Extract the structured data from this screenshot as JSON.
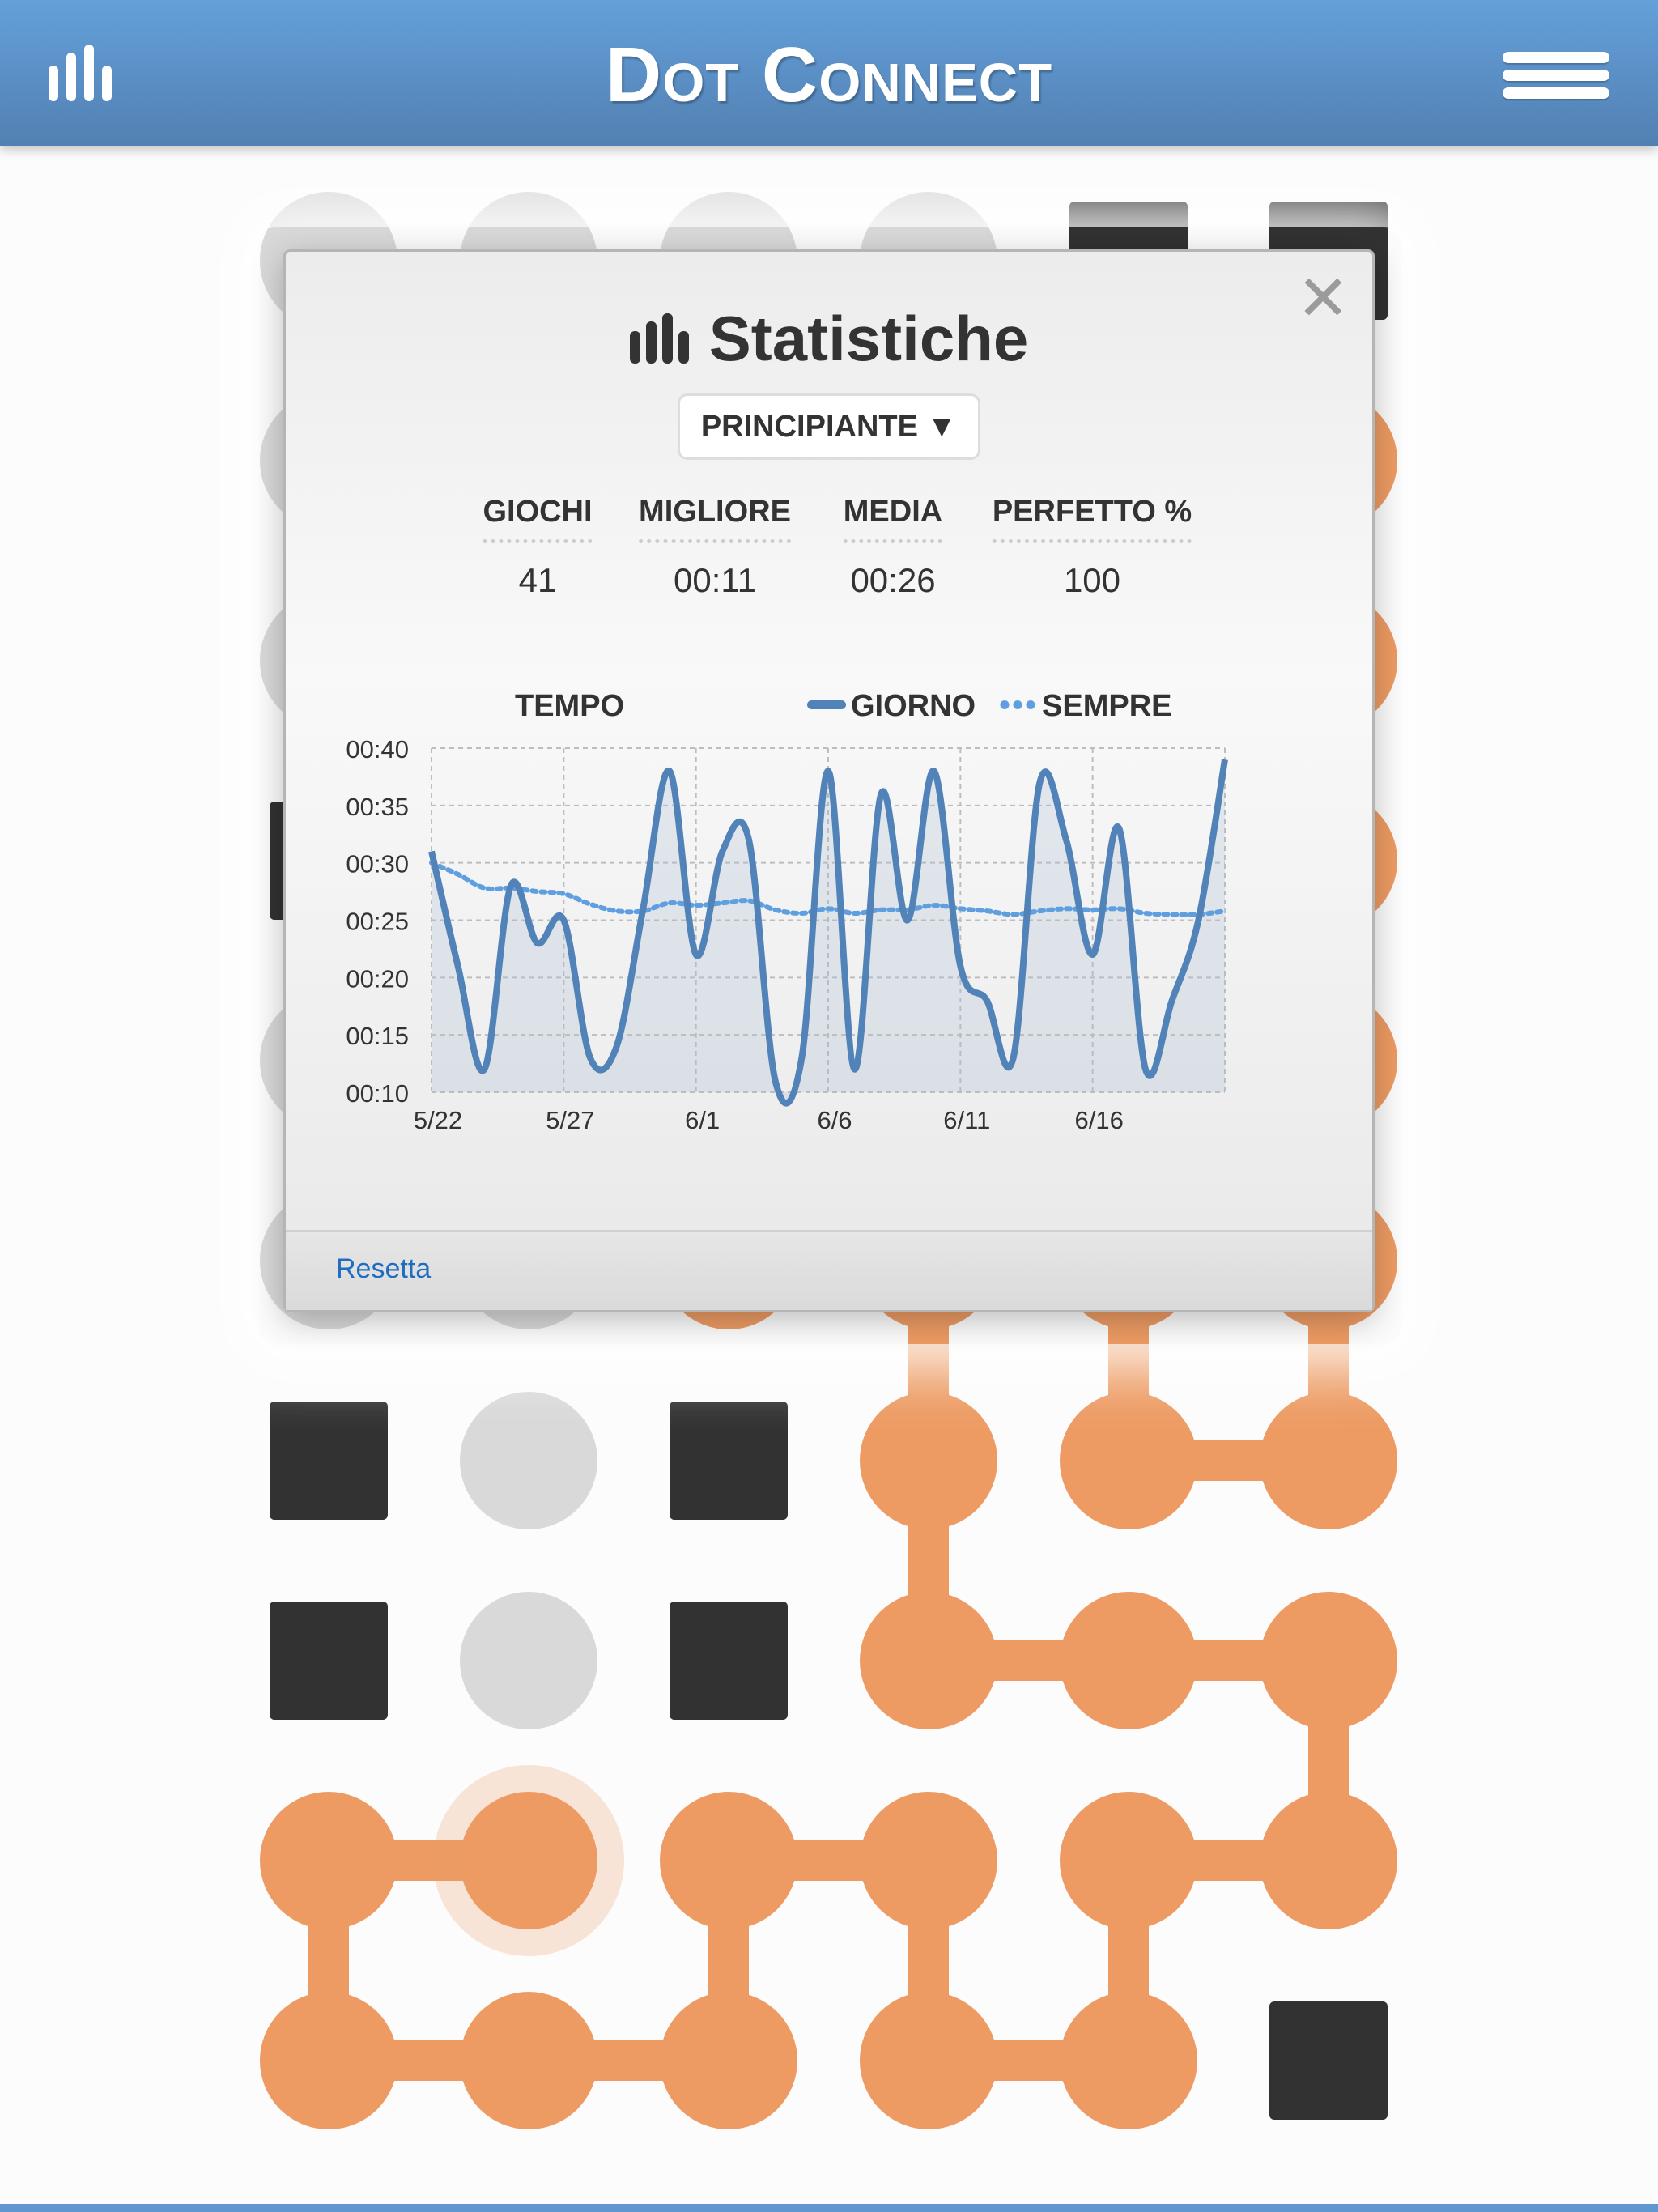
{
  "header": {
    "title": "Dot Connect",
    "left_icon": "stats-bars-icon",
    "right_icon": "hamburger-menu-icon"
  },
  "colors": {
    "header": "#5b8fc7",
    "path": "#ed9b63",
    "empty_dot": "#d9d9d9",
    "block": "#323232",
    "chart_line": "#5182b8",
    "chart_avg": "#5f9fe0",
    "link": "#1f6dc0"
  },
  "board": {
    "rows": [
      "GGGGBB",
      "GGGGGO",
      "GGGGGO",
      "BGGGGO",
      "GGGGGO",
      "GGOOOO",
      "BGBOOO",
      "BGBOOO",
      "OOOOOO",
      "OOOOOB"
    ],
    "highlight": [
      8,
      1
    ],
    "links": [
      [
        5,
        3,
        6,
        3
      ],
      [
        5,
        4,
        6,
        4
      ],
      [
        5,
        5,
        6,
        5
      ],
      [
        6,
        3,
        7,
        3
      ],
      [
        6,
        4,
        6,
        5
      ],
      [
        7,
        3,
        7,
        4
      ],
      [
        7,
        4,
        7,
        5
      ],
      [
        7,
        5,
        8,
        5
      ],
      [
        8,
        0,
        8,
        1
      ],
      [
        8,
        2,
        8,
        3
      ],
      [
        8,
        4,
        8,
        5
      ],
      [
        8,
        0,
        9,
        0
      ],
      [
        8,
        2,
        9,
        2
      ],
      [
        8,
        3,
        9,
        3
      ],
      [
        8,
        4,
        9,
        4
      ],
      [
        9,
        0,
        9,
        1
      ],
      [
        9,
        1,
        9,
        2
      ],
      [
        9,
        3,
        9,
        4
      ]
    ]
  },
  "modal": {
    "title": "Statistiche",
    "title_icon": "stats-bars-icon",
    "close_icon": "close-x-icon",
    "difficulty": "PRINCIPIANTE",
    "stats": [
      {
        "label": "GIOCHI",
        "value": "41"
      },
      {
        "label": "MIGLIORE",
        "value": "00:11"
      },
      {
        "label": "MEDIA",
        "value": "00:26"
      },
      {
        "label": "PERFETTO %",
        "value": "100"
      }
    ],
    "reset_label": "Resetta"
  },
  "chart_data": {
    "type": "line",
    "title": "TEMPO",
    "legend_position": "top-right",
    "grid": true,
    "x": [
      "5/22",
      "5/23",
      "5/24",
      "5/25",
      "5/26",
      "5/27",
      "5/28",
      "5/29",
      "5/30",
      "5/31",
      "6/1",
      "6/2",
      "6/3",
      "6/4",
      "6/5",
      "6/6",
      "6/7",
      "6/8",
      "6/9",
      "6/10",
      "6/11",
      "6/12",
      "6/13",
      "6/14",
      "6/15",
      "6/16",
      "6/17",
      "6/18",
      "6/19",
      "6/20",
      "6/21"
    ],
    "x_tick_labels": [
      "5/22",
      "5/27",
      "6/1",
      "6/6",
      "6/11",
      "6/16"
    ],
    "y_tick_labels": [
      "00:10",
      "00:15",
      "00:20",
      "00:25",
      "00:30",
      "00:35",
      "00:40"
    ],
    "ylim_seconds": [
      10,
      40
    ],
    "series": [
      {
        "name": "GIORNO",
        "style": "solid",
        "values": [
          31,
          21,
          12,
          28,
          23,
          25,
          13,
          14,
          26,
          38,
          22,
          31,
          32,
          11,
          13,
          38,
          12,
          36,
          25,
          38,
          21,
          18,
          13,
          37,
          32,
          22,
          33,
          12,
          18,
          25,
          39
        ]
      },
      {
        "name": "SEMPRE",
        "style": "dotted",
        "values": [
          30,
          29,
          27.8,
          27.8,
          27.5,
          27.3,
          26.4,
          25.8,
          25.8,
          26.5,
          26.3,
          26.5,
          26.7,
          25.9,
          25.6,
          26,
          25.6,
          25.9,
          25.9,
          26.3,
          26,
          25.8,
          25.5,
          25.8,
          26,
          25.9,
          26,
          25.6,
          25.5,
          25.5,
          25.8
        ]
      }
    ]
  }
}
